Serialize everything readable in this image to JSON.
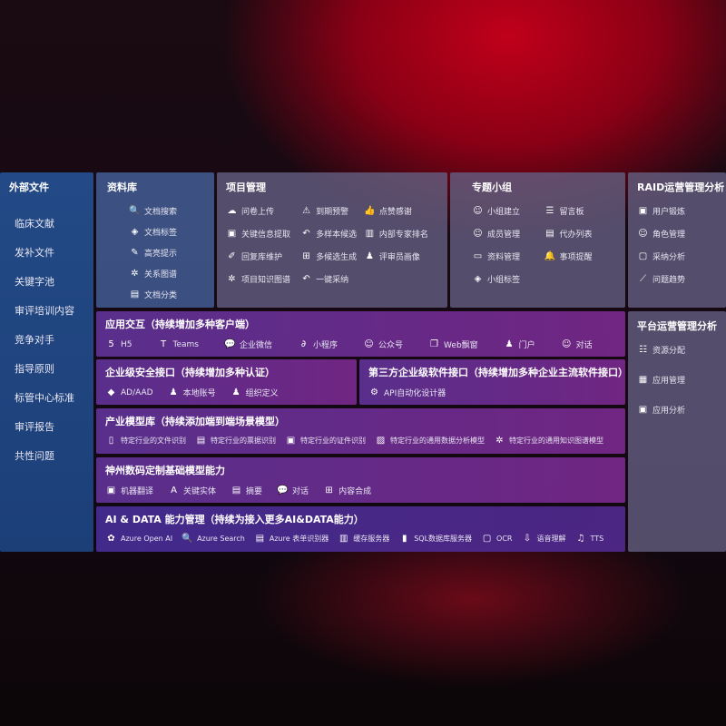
{
  "sidebar": {
    "title": "外部文件",
    "items": [
      "临床文献",
      "发补文件",
      "关键字池",
      "审评培训内容",
      "竞争对手",
      "指导原则",
      "标管中心标准",
      "审评报告",
      "共性问题"
    ]
  },
  "library": {
    "title": "资料库",
    "items": [
      {
        "icon": "document-search-icon",
        "g": "🔍",
        "label": "文档搜索"
      },
      {
        "icon": "tag-icon",
        "g": "◈",
        "label": "文档标签"
      },
      {
        "icon": "pen-icon",
        "g": "✎",
        "label": "高亮提示"
      },
      {
        "icon": "graph-icon",
        "g": "✲",
        "label": "关系图谱"
      },
      {
        "icon": "document-category-icon",
        "g": "▤",
        "label": "文档分类"
      }
    ]
  },
  "project": {
    "title": "项目管理",
    "items": [
      {
        "icon": "cloud-upload-icon",
        "g": "☁",
        "label": "问卷上传"
      },
      {
        "icon": "alarm-icon",
        "g": "⚠",
        "label": "到期预警"
      },
      {
        "icon": "thumbs-up-icon",
        "g": "👍",
        "label": "点赞感谢"
      },
      {
        "icon": "extract-icon",
        "g": "▣",
        "label": "关键信息提取"
      },
      {
        "icon": "reply-icon",
        "g": "↶",
        "label": "多样本候选"
      },
      {
        "icon": "ranking-icon",
        "g": "▥",
        "label": "内部专家排名"
      },
      {
        "icon": "edit-icon",
        "g": "✐",
        "label": "回复库维护"
      },
      {
        "icon": "puzzle-icon",
        "g": "⊞",
        "label": "多候选生成"
      },
      {
        "icon": "person-icon",
        "g": "♟",
        "label": "评审员画像"
      },
      {
        "icon": "knowledge-graph-icon",
        "g": "✲",
        "label": "项目知识图谱"
      },
      {
        "icon": "reply-icon",
        "g": "↶",
        "label": "一键采纳"
      }
    ]
  },
  "group": {
    "title": "专题小组",
    "items": [
      {
        "icon": "group-icon",
        "g": "☺",
        "label": "小组建立"
      },
      {
        "icon": "bbs-icon",
        "g": "☰",
        "label": "留言板"
      },
      {
        "icon": "member-icon",
        "g": "☺",
        "label": "成员管理"
      },
      {
        "icon": "clipboard-icon",
        "g": "▤",
        "label": "代办列表"
      },
      {
        "icon": "folder-icon",
        "g": "▭",
        "label": "资料管理"
      },
      {
        "icon": "bell-icon",
        "g": "🔔",
        "label": "事项提醒"
      },
      {
        "icon": "tag-icon",
        "g": "◈",
        "label": "小组标签"
      }
    ]
  },
  "raid": {
    "title": "RAID运营管理分析",
    "items": [
      {
        "icon": "id-card-icon",
        "g": "▣",
        "label": "用户锻炼"
      },
      {
        "icon": "users-icon",
        "g": "☺",
        "label": "角色管理"
      },
      {
        "icon": "qa-icon",
        "g": "▢",
        "label": "采纳分析"
      },
      {
        "icon": "trend-chart-icon",
        "g": "⟋",
        "label": "问题趋势"
      }
    ]
  },
  "platform": {
    "title": "平台运营管理分析",
    "items": [
      {
        "icon": "list-icon",
        "g": "☷",
        "label": "资源分配"
      },
      {
        "icon": "apps-icon",
        "g": "▦",
        "label": "应用管理"
      },
      {
        "icon": "analysis-icon",
        "g": "▣",
        "label": "应用分析"
      }
    ]
  },
  "app": {
    "title": "应用交互（持续增加多种客户端）",
    "items": [
      {
        "icon": "html5-icon",
        "g": "5",
        "label": "H5"
      },
      {
        "icon": "teams-icon",
        "g": "T",
        "label": "Teams"
      },
      {
        "icon": "wecom-icon",
        "g": "💬",
        "label": "企业微信"
      },
      {
        "icon": "mini-program-icon",
        "g": "∂",
        "label": "小程序"
      },
      {
        "icon": "official-account-icon",
        "g": "☺",
        "label": "公众号"
      },
      {
        "icon": "web-window-icon",
        "g": "❐",
        "label": "Web飘窗"
      },
      {
        "icon": "portal-icon",
        "g": "♟",
        "label": "门户"
      },
      {
        "icon": "chat-icon",
        "g": "☺",
        "label": "对话"
      }
    ]
  },
  "security": {
    "title": "企业级安全接口（持续增加多种认证）",
    "items": [
      {
        "icon": "ad-icon",
        "g": "◆",
        "label": "AD/AAD"
      },
      {
        "icon": "local-account-icon",
        "g": "♟",
        "label": "本地账号"
      },
      {
        "icon": "organization-icon",
        "g": "♟",
        "label": "组织定义"
      }
    ]
  },
  "thirdparty": {
    "title": "第三方企业级软件接口（持续增加多种企业主流软件接口）",
    "items": [
      {
        "icon": "api-gear-icon",
        "g": "⚙",
        "label": "API自动化设计器"
      }
    ]
  },
  "industry": {
    "title": "产业模型库（持续添加端到端场景模型）",
    "items": [
      {
        "icon": "file-icon",
        "g": "▯",
        "label": "特定行业的文件识别"
      },
      {
        "icon": "receipt-icon",
        "g": "▤",
        "label": "特定行业的票据识别"
      },
      {
        "icon": "id-card-icon",
        "g": "▣",
        "label": "特定行业的证件识别"
      },
      {
        "icon": "data-analysis-icon",
        "g": "▨",
        "label": "特定行业的通用数据分析模型"
      },
      {
        "icon": "knowledge-graph-icon",
        "g": "✲",
        "label": "特定行业的通用知识图谱模型"
      }
    ]
  },
  "base": {
    "title": "神州数码定制基础模型能力",
    "items": [
      {
        "icon": "translate-icon",
        "g": "▣",
        "label": "机器翻译"
      },
      {
        "icon": "entity-icon",
        "g": "A",
        "label": "关键实体"
      },
      {
        "icon": "summary-icon",
        "g": "▤",
        "label": "摘要"
      },
      {
        "icon": "chat-bubble-icon",
        "g": "💬",
        "label": "对话"
      },
      {
        "icon": "content-compose-icon",
        "g": "⊞",
        "label": "内容合成"
      }
    ]
  },
  "ai": {
    "title": "AI & DATA 能力管理（持续为接入更多AI&DATA能力）",
    "items": [
      {
        "icon": "openai-icon",
        "g": "✿",
        "label": "Azure Open AI"
      },
      {
        "icon": "azure-search-icon",
        "g": "🔍",
        "label": "Azure Search"
      },
      {
        "icon": "form-recognizer-icon",
        "g": "▤",
        "label": "Azure 表单识别器"
      },
      {
        "icon": "cache-server-icon",
        "g": "▥",
        "label": "缓存服务器"
      },
      {
        "icon": "sql-database-icon",
        "g": "▮",
        "label": "SQL数据库服务器"
      },
      {
        "icon": "ocr-icon",
        "g": "▢",
        "label": "OCR"
      },
      {
        "icon": "speech-icon",
        "g": "⇩",
        "label": "语音理解"
      },
      {
        "icon": "tts-icon",
        "g": "♫",
        "label": "TTS"
      }
    ]
  }
}
